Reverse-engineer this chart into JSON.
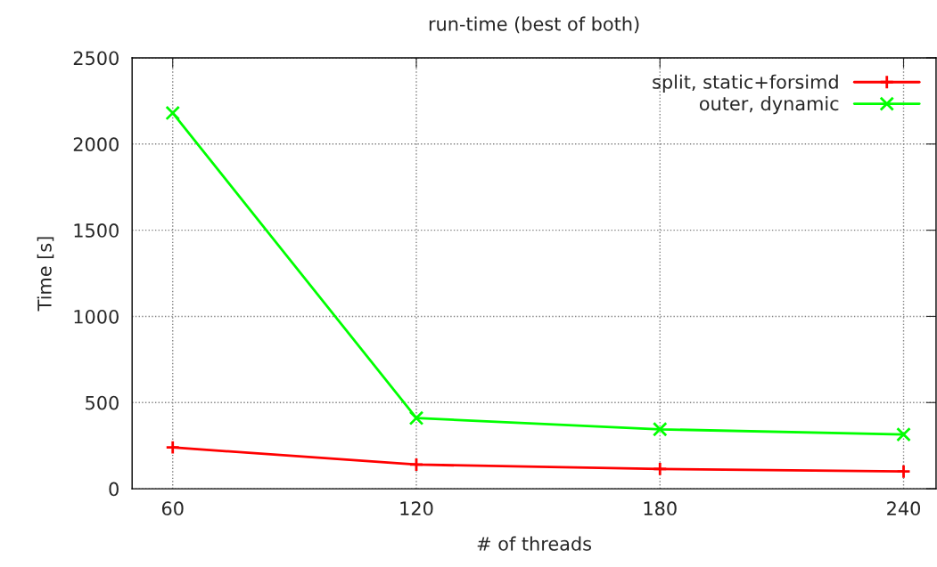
{
  "chart_data": {
    "type": "line",
    "title": "run-time (best of both)",
    "xlabel": "# of threads",
    "ylabel": "Time [s]",
    "x": [
      60,
      120,
      180,
      240
    ],
    "series": [
      {
        "name": "split, static+forsimd",
        "color": "#ff0000",
        "marker": "cross",
        "values": [
          240,
          140,
          115,
          100
        ]
      },
      {
        "name": "outer, dynamic",
        "color": "#00ff00",
        "marker": "x",
        "values": [
          2180,
          410,
          345,
          315
        ]
      }
    ],
    "xlim": [
      50,
      248
    ],
    "xticks": [
      60,
      120,
      180,
      240
    ],
    "ylim": [
      0,
      2500
    ],
    "yticks": [
      0,
      500,
      1000,
      1500,
      2000,
      2500
    ],
    "grid": true,
    "legend": "top right",
    "line_style": "solid"
  }
}
